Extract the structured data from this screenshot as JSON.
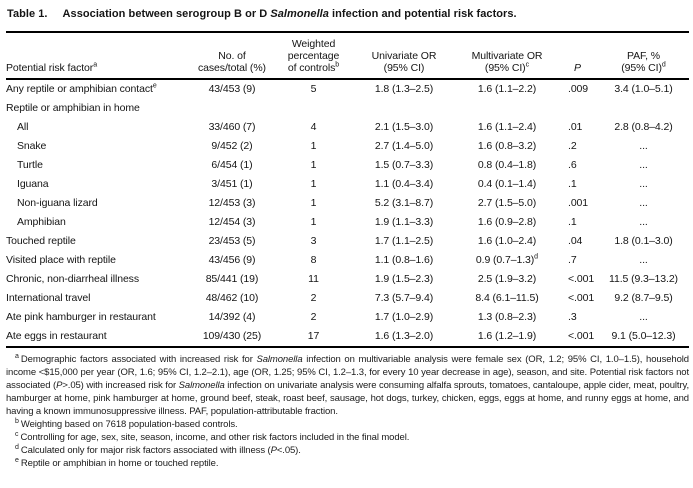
{
  "title": {
    "label": "Table 1.",
    "segments": [
      {
        "text": "Association between serogroup B or D "
      },
      {
        "text": "Salmonella",
        "italic": true
      },
      {
        "text": " infection and potential risk factors."
      }
    ]
  },
  "table": {
    "columns": [
      {
        "lines": [
          "Potential risk factor"
        ],
        "sup": "a",
        "align": "left"
      },
      {
        "lines": [
          "No. of",
          "cases/total (%)"
        ]
      },
      {
        "lines": [
          "Weighted",
          "percentage",
          "of controls"
        ],
        "sup": "b"
      },
      {
        "lines": [
          "Univariate OR",
          "(95% CI)"
        ]
      },
      {
        "lines": [
          "Multivariate OR",
          "(95% CI)"
        ],
        "sup": "c"
      },
      {
        "lines": [
          "P"
        ],
        "italic": true
      },
      {
        "lines": [
          "PAF, %",
          "(95% CI)"
        ],
        "sup": "d"
      }
    ],
    "rows": [
      {
        "label": "Any reptile or amphibian contact",
        "sup": "e",
        "indent": 0,
        "cells": [
          "43/453 (9)",
          "5",
          "1.8 (1.3–2.5)",
          "1.6 (1.1–2.2)",
          ".009",
          "3.4 (1.0–5.1)"
        ]
      },
      {
        "label": "Reptile or amphibian in home",
        "indent": 0,
        "cells": [
          "",
          "",
          "",
          "",
          "",
          ""
        ]
      },
      {
        "label": "All",
        "indent": 1,
        "cells": [
          "33/460 (7)",
          "4",
          "2.1 (1.5–3.0)",
          "1.6 (1.1–2.4)",
          ".01",
          "2.8 (0.8–4.2)"
        ]
      },
      {
        "label": "Snake",
        "indent": 1,
        "cells": [
          "9/452 (2)",
          "1",
          "2.7 (1.4–5.0)",
          "1.6 (0.8–3.2)",
          ".2",
          "..."
        ]
      },
      {
        "label": "Turtle",
        "indent": 1,
        "cells": [
          "6/454 (1)",
          "1",
          "1.5 (0.7–3.3)",
          "0.8 (0.4–1.8)",
          ".6",
          "..."
        ]
      },
      {
        "label": "Iguana",
        "indent": 1,
        "cells": [
          "3/451 (1)",
          "1",
          "1.1 (0.4–3.4)",
          "0.4 (0.1–1.4)",
          ".1",
          "..."
        ]
      },
      {
        "label": "Non-iguana lizard",
        "indent": 1,
        "cells": [
          "12/453 (3)",
          "1",
          "5.2 (3.1–8.7)",
          "2.7 (1.5–5.0)",
          ".001",
          "..."
        ]
      },
      {
        "label": "Amphibian",
        "indent": 1,
        "cells": [
          "12/454 (3)",
          "1",
          "1.9 (1.1–3.3)",
          "1.6 (0.9–2.8)",
          ".1",
          "..."
        ]
      },
      {
        "label": "Touched reptile",
        "indent": 0,
        "cells": [
          "23/453 (5)",
          "3",
          "1.7 (1.1–2.5)",
          "1.6 (1.0–2.4)",
          ".04",
          "1.8 (0.1–3.0)"
        ]
      },
      {
        "label": "Visited place with reptile",
        "indent": 0,
        "cells": [
          "43/456 (9)",
          "8",
          "1.1 (0.8–1.6)",
          "0.9 (0.7–1.3)^d",
          ".7",
          "..."
        ]
      },
      {
        "label": "Chronic, non-diarrheal illness",
        "indent": 0,
        "cells": [
          "85/441 (19)",
          "11",
          "1.9 (1.5–2.3)",
          "2.5 (1.9–3.2)",
          "<.001",
          "11.5 (9.3–13.2)"
        ]
      },
      {
        "label": "International travel",
        "indent": 0,
        "cells": [
          "48/462 (10)",
          "2",
          "7.3 (5.7–9.4)",
          "8.4 (6.1–11.5)",
          "<.001",
          "9.2 (8.7–9.5)"
        ]
      },
      {
        "label": "Ate pink hamburger in restaurant",
        "indent": 0,
        "cells": [
          "14/392 (4)",
          "2",
          "1.7 (1.0–2.9)",
          "1.3 (0.8–2.3)",
          ".3",
          "..."
        ]
      },
      {
        "label": "Ate eggs in restaurant",
        "indent": 0,
        "cells": [
          "109/430 (25)",
          "17",
          "1.6 (1.3–2.0)",
          "1.6 (1.2–1.9)",
          "<.001",
          "9.1 (5.0–12.3)"
        ]
      }
    ]
  },
  "footnotes": [
    {
      "sup": "a",
      "justify": true,
      "segments": [
        {
          "text": "Demographic factors associated with increased risk for "
        },
        {
          "text": "Salmonella",
          "italic": true
        },
        {
          "text": " infection on multivariable analysis were female sex (OR, 1.2; 95% CI, 1.0–1.5), household income <$15,000 per year (OR, 1.6; 95% CI, 1.2–2.1), age (OR, 1.25; 95% CI, 1.2–1.3, for every 10 year decrease in age), season, and site. Potential risk factors not associated ("
        },
        {
          "text": "P",
          "italic": true
        },
        {
          "text": ">.05) with increased risk for "
        },
        {
          "text": "Salmonella",
          "italic": true
        },
        {
          "text": " infection on univariate analysis were consuming alfalfa sprouts, tomatoes, cantaloupe, apple cider, meat, poultry, hamburger at home, pink hamburger at home, ground beef, steak, roast beef, sausage, hot dogs, turkey, chicken, eggs, eggs at home, and runny eggs at home, and having a known immunosuppressive illness. PAF, population-attributable fraction."
        }
      ]
    },
    {
      "sup": "b",
      "segments": [
        {
          "text": "Weighting based on 7618 population-based controls."
        }
      ]
    },
    {
      "sup": "c",
      "segments": [
        {
          "text": "Controlling for age, sex, site, season, income, and other risk factors included in the final model."
        }
      ]
    },
    {
      "sup": "d",
      "segments": [
        {
          "text": "Calculated only for major risk factors associated with illness ("
        },
        {
          "text": "P",
          "italic": true
        },
        {
          "text": "<.05)."
        }
      ]
    },
    {
      "sup": "e",
      "segments": [
        {
          "text": "Reptile or amphibian in home or touched reptile."
        }
      ]
    }
  ]
}
